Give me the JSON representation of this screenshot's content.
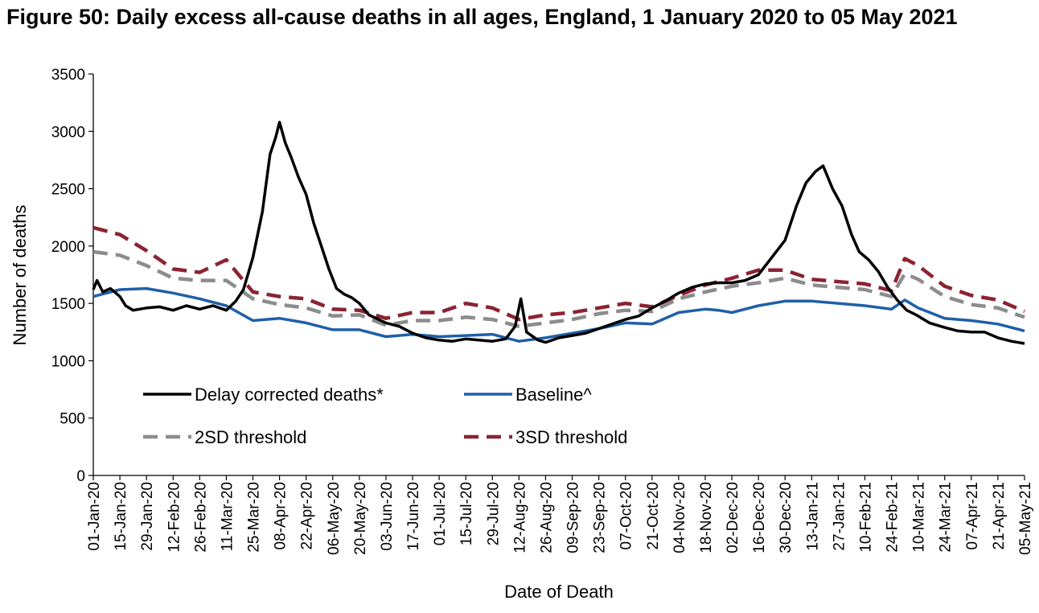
{
  "page": {
    "title": "Figure 50: Daily excess all-cause deaths in all ages, England, 1 January 2020 to 05 May 2021"
  },
  "colors": {
    "delay": "#000000",
    "baseline": "#1f5fa8",
    "sd2": "#8c8c8c",
    "sd3": "#8b2332"
  },
  "chart_data": {
    "type": "line",
    "title": "Figure 50: Daily excess all-cause deaths in all ages, England, 1 January 2020 to 05 May 2021",
    "xlabel": "Date of Death",
    "ylabel": "Number of deaths",
    "x_range": [
      "2020-01-01",
      "2021-05-05"
    ],
    "ylim": [
      0,
      3500
    ],
    "yticks": [
      0,
      500,
      1000,
      1500,
      2000,
      2500,
      3000,
      3500
    ],
    "xtick_dates": [
      "2020-01-01",
      "2020-01-15",
      "2020-01-29",
      "2020-02-12",
      "2020-02-26",
      "2020-03-11",
      "2020-03-25",
      "2020-04-08",
      "2020-04-22",
      "2020-05-06",
      "2020-05-20",
      "2020-06-03",
      "2020-06-17",
      "2020-07-01",
      "2020-07-15",
      "2020-07-29",
      "2020-08-12",
      "2020-08-26",
      "2020-09-09",
      "2020-09-23",
      "2020-10-07",
      "2020-10-21",
      "2020-11-04",
      "2020-11-18",
      "2020-12-02",
      "2020-12-16",
      "2020-12-30",
      "2021-01-13",
      "2021-01-27",
      "2021-02-10",
      "2021-02-24",
      "2021-03-10",
      "2021-03-24",
      "2021-04-07",
      "2021-04-21",
      "2021-05-05"
    ],
    "xtick_labels": [
      "01-Jan-20",
      "15-Jan-20",
      "29-Jan-20",
      "12-Feb-20",
      "26-Feb-20",
      "11-Mar-20",
      "25-Mar-20",
      "08-Apr-20",
      "22-Apr-20",
      "06-May-20",
      "20-May-20",
      "03-Jun-20",
      "17-Jun-20",
      "01-Jul-20",
      "15-Jul-20",
      "29-Jul-20",
      "12-Aug-20",
      "26-Aug-20",
      "09-Sep-20",
      "23-Sep-20",
      "07-Oct-20",
      "21-Oct-20",
      "04-Nov-20",
      "18-Nov-20",
      "02-Dec-20",
      "16-Dec-20",
      "30-Dec-20",
      "13-Jan-21",
      "27-Jan-21",
      "10-Feb-21",
      "24-Feb-21",
      "10-Mar-21",
      "24-Mar-21",
      "07-Apr-21",
      "21-Apr-21",
      "05-May-21"
    ],
    "grid": false,
    "legend": {
      "position": "lower-left-inside",
      "columns": 2
    },
    "series": [
      {
        "name": "Delay corrected deaths*",
        "style": "solid",
        "points": [
          [
            "2020-01-01",
            1620
          ],
          [
            "2020-01-03",
            1700
          ],
          [
            "2020-01-06",
            1600
          ],
          [
            "2020-01-10",
            1630
          ],
          [
            "2020-01-15",
            1560
          ],
          [
            "2020-01-18",
            1480
          ],
          [
            "2020-01-22",
            1440
          ],
          [
            "2020-01-29",
            1460
          ],
          [
            "2020-02-05",
            1470
          ],
          [
            "2020-02-12",
            1440
          ],
          [
            "2020-02-19",
            1480
          ],
          [
            "2020-02-26",
            1450
          ],
          [
            "2020-03-04",
            1480
          ],
          [
            "2020-03-11",
            1440
          ],
          [
            "2020-03-16",
            1520
          ],
          [
            "2020-03-20",
            1620
          ],
          [
            "2020-03-25",
            1900
          ],
          [
            "2020-03-30",
            2300
          ],
          [
            "2020-04-03",
            2800
          ],
          [
            "2020-04-06",
            2950
          ],
          [
            "2020-04-08",
            3080
          ],
          [
            "2020-04-11",
            2900
          ],
          [
            "2020-04-14",
            2780
          ],
          [
            "2020-04-18",
            2600
          ],
          [
            "2020-04-22",
            2450
          ],
          [
            "2020-04-26",
            2200
          ],
          [
            "2020-04-30",
            2000
          ],
          [
            "2020-05-04",
            1800
          ],
          [
            "2020-05-08",
            1630
          ],
          [
            "2020-05-12",
            1580
          ],
          [
            "2020-05-16",
            1550
          ],
          [
            "2020-05-20",
            1500
          ],
          [
            "2020-05-25",
            1400
          ],
          [
            "2020-06-03",
            1330
          ],
          [
            "2020-06-10",
            1300
          ],
          [
            "2020-06-17",
            1240
          ],
          [
            "2020-06-24",
            1200
          ],
          [
            "2020-07-01",
            1180
          ],
          [
            "2020-07-08",
            1170
          ],
          [
            "2020-07-15",
            1190
          ],
          [
            "2020-07-22",
            1180
          ],
          [
            "2020-07-29",
            1170
          ],
          [
            "2020-08-05",
            1190
          ],
          [
            "2020-08-10",
            1300
          ],
          [
            "2020-08-13",
            1540
          ],
          [
            "2020-08-16",
            1250
          ],
          [
            "2020-08-22",
            1180
          ],
          [
            "2020-08-26",
            1160
          ],
          [
            "2020-09-02",
            1200
          ],
          [
            "2020-09-09",
            1220
          ],
          [
            "2020-09-16",
            1240
          ],
          [
            "2020-09-23",
            1280
          ],
          [
            "2020-09-30",
            1320
          ],
          [
            "2020-10-07",
            1360
          ],
          [
            "2020-10-14",
            1390
          ],
          [
            "2020-10-21",
            1460
          ],
          [
            "2020-10-28",
            1520
          ],
          [
            "2020-11-04",
            1590
          ],
          [
            "2020-11-11",
            1640
          ],
          [
            "2020-11-18",
            1670
          ],
          [
            "2020-11-25",
            1680
          ],
          [
            "2020-12-02",
            1680
          ],
          [
            "2020-12-09",
            1700
          ],
          [
            "2020-12-16",
            1750
          ],
          [
            "2020-12-23",
            1900
          ],
          [
            "2020-12-30",
            2050
          ],
          [
            "2021-01-05",
            2350
          ],
          [
            "2021-01-10",
            2550
          ],
          [
            "2021-01-15",
            2650
          ],
          [
            "2021-01-19",
            2700
          ],
          [
            "2021-01-24",
            2500
          ],
          [
            "2021-01-29",
            2350
          ],
          [
            "2021-02-03",
            2100
          ],
          [
            "2021-02-07",
            1950
          ],
          [
            "2021-02-12",
            1880
          ],
          [
            "2021-02-17",
            1780
          ],
          [
            "2021-02-22",
            1640
          ],
          [
            "2021-02-27",
            1530
          ],
          [
            "2021-03-04",
            1440
          ],
          [
            "2021-03-09",
            1400
          ],
          [
            "2021-03-16",
            1330
          ],
          [
            "2021-03-24",
            1290
          ],
          [
            "2021-03-31",
            1260
          ],
          [
            "2021-04-07",
            1250
          ],
          [
            "2021-04-14",
            1250
          ],
          [
            "2021-04-21",
            1200
          ],
          [
            "2021-04-28",
            1170
          ],
          [
            "2021-05-05",
            1150
          ]
        ]
      },
      {
        "name": "Baseline^",
        "style": "solid",
        "points": [
          [
            "2020-01-01",
            1560
          ],
          [
            "2020-01-15",
            1620
          ],
          [
            "2020-01-29",
            1630
          ],
          [
            "2020-02-12",
            1590
          ],
          [
            "2020-02-26",
            1540
          ],
          [
            "2020-03-11",
            1480
          ],
          [
            "2020-03-25",
            1350
          ],
          [
            "2020-04-08",
            1370
          ],
          [
            "2020-04-22",
            1330
          ],
          [
            "2020-05-06",
            1270
          ],
          [
            "2020-05-20",
            1270
          ],
          [
            "2020-06-03",
            1210
          ],
          [
            "2020-06-17",
            1230
          ],
          [
            "2020-07-01",
            1210
          ],
          [
            "2020-07-15",
            1220
          ],
          [
            "2020-07-29",
            1230
          ],
          [
            "2020-08-12",
            1170
          ],
          [
            "2020-08-26",
            1200
          ],
          [
            "2020-09-09",
            1240
          ],
          [
            "2020-09-23",
            1280
          ],
          [
            "2020-10-07",
            1330
          ],
          [
            "2020-10-21",
            1320
          ],
          [
            "2020-11-04",
            1420
          ],
          [
            "2020-11-18",
            1450
          ],
          [
            "2020-11-25",
            1440
          ],
          [
            "2020-12-02",
            1420
          ],
          [
            "2020-12-16",
            1480
          ],
          [
            "2020-12-30",
            1520
          ],
          [
            "2021-01-13",
            1520
          ],
          [
            "2021-01-27",
            1500
          ],
          [
            "2021-02-10",
            1480
          ],
          [
            "2021-02-24",
            1450
          ],
          [
            "2021-03-03",
            1530
          ],
          [
            "2021-03-10",
            1460
          ],
          [
            "2021-03-24",
            1370
          ],
          [
            "2021-04-07",
            1350
          ],
          [
            "2021-04-21",
            1320
          ],
          [
            "2021-05-05",
            1260
          ]
        ]
      },
      {
        "name": "2SD threshold",
        "style": "dashed",
        "points": [
          [
            "2020-01-01",
            1950
          ],
          [
            "2020-01-15",
            1920
          ],
          [
            "2020-01-29",
            1830
          ],
          [
            "2020-02-12",
            1720
          ],
          [
            "2020-02-26",
            1700
          ],
          [
            "2020-03-11",
            1700
          ],
          [
            "2020-03-25",
            1540
          ],
          [
            "2020-04-08",
            1490
          ],
          [
            "2020-04-22",
            1460
          ],
          [
            "2020-05-06",
            1390
          ],
          [
            "2020-05-20",
            1400
          ],
          [
            "2020-06-03",
            1310
          ],
          [
            "2020-06-17",
            1350
          ],
          [
            "2020-07-01",
            1350
          ],
          [
            "2020-07-15",
            1380
          ],
          [
            "2020-07-29",
            1360
          ],
          [
            "2020-08-12",
            1300
          ],
          [
            "2020-08-26",
            1330
          ],
          [
            "2020-09-09",
            1360
          ],
          [
            "2020-09-23",
            1410
          ],
          [
            "2020-10-07",
            1440
          ],
          [
            "2020-10-21",
            1430
          ],
          [
            "2020-11-04",
            1540
          ],
          [
            "2020-11-18",
            1600
          ],
          [
            "2020-12-02",
            1650
          ],
          [
            "2020-12-16",
            1680
          ],
          [
            "2020-12-30",
            1720
          ],
          [
            "2021-01-13",
            1660
          ],
          [
            "2021-01-27",
            1640
          ],
          [
            "2021-02-10",
            1620
          ],
          [
            "2021-02-24",
            1560
          ],
          [
            "2021-03-03",
            1760
          ],
          [
            "2021-03-10",
            1710
          ],
          [
            "2021-03-24",
            1560
          ],
          [
            "2021-04-07",
            1490
          ],
          [
            "2021-04-21",
            1460
          ],
          [
            "2021-05-05",
            1380
          ]
        ]
      },
      {
        "name": "3SD threshold",
        "style": "dashed",
        "points": [
          [
            "2020-01-01",
            2160
          ],
          [
            "2020-01-15",
            2100
          ],
          [
            "2020-01-29",
            1960
          ],
          [
            "2020-02-12",
            1800
          ],
          [
            "2020-02-26",
            1770
          ],
          [
            "2020-03-11",
            1880
          ],
          [
            "2020-03-25",
            1600
          ],
          [
            "2020-04-08",
            1560
          ],
          [
            "2020-04-22",
            1540
          ],
          [
            "2020-05-06",
            1450
          ],
          [
            "2020-05-20",
            1440
          ],
          [
            "2020-06-03",
            1370
          ],
          [
            "2020-06-17",
            1420
          ],
          [
            "2020-07-01",
            1420
          ],
          [
            "2020-07-15",
            1500
          ],
          [
            "2020-07-29",
            1460
          ],
          [
            "2020-08-12",
            1360
          ],
          [
            "2020-08-26",
            1400
          ],
          [
            "2020-09-09",
            1420
          ],
          [
            "2020-09-23",
            1460
          ],
          [
            "2020-10-07",
            1500
          ],
          [
            "2020-10-21",
            1470
          ],
          [
            "2020-11-04",
            1570
          ],
          [
            "2020-11-18",
            1660
          ],
          [
            "2020-12-02",
            1720
          ],
          [
            "2020-12-16",
            1790
          ],
          [
            "2020-12-30",
            1790
          ],
          [
            "2021-01-13",
            1710
          ],
          [
            "2021-01-27",
            1690
          ],
          [
            "2021-02-10",
            1670
          ],
          [
            "2021-02-24",
            1610
          ],
          [
            "2021-03-03",
            1890
          ],
          [
            "2021-03-10",
            1830
          ],
          [
            "2021-03-24",
            1650
          ],
          [
            "2021-04-07",
            1570
          ],
          [
            "2021-04-21",
            1530
          ],
          [
            "2021-05-05",
            1430
          ]
        ]
      }
    ]
  }
}
